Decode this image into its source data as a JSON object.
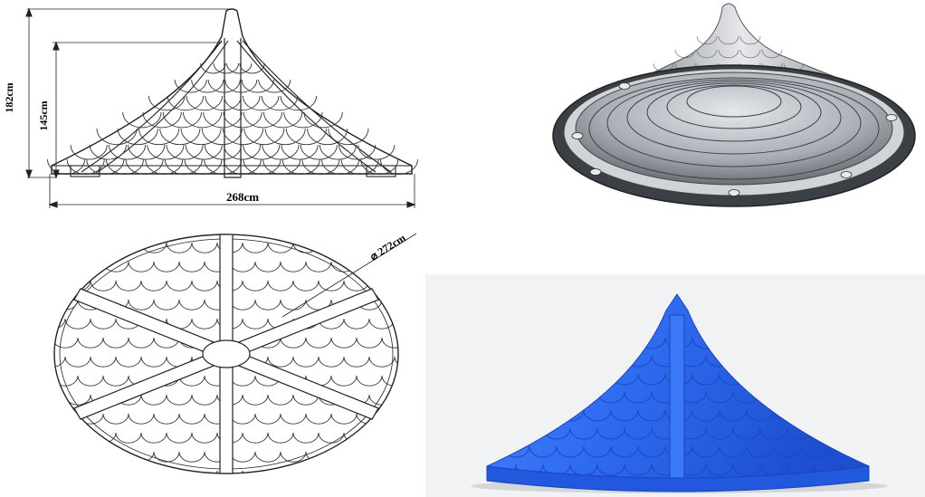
{
  "dimensions": {
    "total_height": "182cm",
    "roof_height": "145cm",
    "base_width": "268cm",
    "diameter": "272cm"
  },
  "colors": {
    "line": "#222222",
    "render_grey_dark": "#4a4e55",
    "render_grey_light": "#d9dce1",
    "render_blue": "#2f6cf0",
    "render_blue_light": "#6f9bff",
    "render_bg": "#f1f2f4"
  },
  "views": [
    "front-elevation",
    "top-plan",
    "underside-3d-render",
    "blue-3d-render"
  ]
}
